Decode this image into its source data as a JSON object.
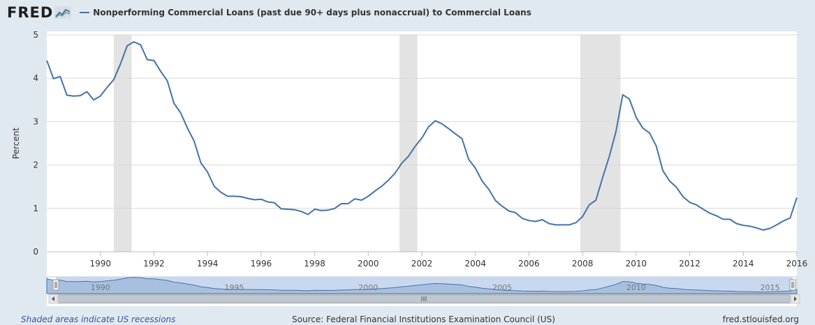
{
  "header": {
    "logo_text": "FRED",
    "legend_label": "Nonperforming Commercial Loans (past due 90+ days plus nonaccrual) to Commercial Loans"
  },
  "footer": {
    "recession_note": "Shaded areas indicate US recessions",
    "source": "Source: Federal Financial Institutions Examination Council (US)",
    "site": "fred.stlouisfed.org"
  },
  "colors": {
    "line": "#4572a7",
    "recession": "#e3e3e3",
    "navigator_fill": "#a8c0e0",
    "navigator_selection": "#c9d8ee"
  },
  "chart_data": {
    "type": "line",
    "ylabel": "Percent",
    "ylim": [
      0,
      5
    ],
    "y_ticks": [
      "0",
      "1",
      "2",
      "3",
      "4",
      "5"
    ],
    "x_ticks": [
      "1990",
      "1992",
      "1994",
      "1996",
      "1998",
      "2000",
      "2002",
      "2004",
      "2006",
      "2008",
      "2010",
      "2012",
      "2014",
      "2016"
    ],
    "navigator_ticks": [
      "1990",
      "1995",
      "2000",
      "2005",
      "2010",
      "2015"
    ],
    "grid": true,
    "recessions": [
      [
        "1990-07",
        "1991-03"
      ],
      [
        "2001-03",
        "2001-11"
      ],
      [
        "2007-12",
        "2009-06"
      ]
    ],
    "series": [
      {
        "x": [
          "1988-01",
          "1988-04",
          "1988-07",
          "1988-10",
          "1989-01",
          "1989-04",
          "1989-07",
          "1989-10",
          "1990-01",
          "1990-04",
          "1990-07",
          "1990-10",
          "1991-01",
          "1991-04",
          "1991-07",
          "1991-10",
          "1992-01",
          "1992-04",
          "1992-07",
          "1992-10",
          "1993-01",
          "1993-04",
          "1993-07",
          "1993-10",
          "1994-01",
          "1994-04",
          "1994-07",
          "1994-10",
          "1995-01",
          "1995-04",
          "1995-07",
          "1995-10",
          "1996-01",
          "1996-04",
          "1996-07",
          "1996-10",
          "1997-01",
          "1997-04",
          "1997-07",
          "1997-10",
          "1998-01",
          "1998-04",
          "1998-07",
          "1998-10",
          "1999-01",
          "1999-04",
          "1999-07",
          "1999-10",
          "2000-01",
          "2000-04",
          "2000-07",
          "2000-10",
          "2001-01",
          "2001-04",
          "2001-07",
          "2001-10",
          "2002-01",
          "2002-04",
          "2002-07",
          "2002-10",
          "2003-01",
          "2003-04",
          "2003-07",
          "2003-10",
          "2004-01",
          "2004-04",
          "2004-07",
          "2004-10",
          "2005-01",
          "2005-04",
          "2005-07",
          "2005-10",
          "2006-01",
          "2006-04",
          "2006-07",
          "2006-10",
          "2007-01",
          "2007-04",
          "2007-07",
          "2007-10",
          "2008-01",
          "2008-04",
          "2008-07",
          "2008-10",
          "2009-01",
          "2009-04",
          "2009-07",
          "2009-10",
          "2010-01",
          "2010-04",
          "2010-07",
          "2010-10",
          "2011-01",
          "2011-04",
          "2011-07",
          "2011-10",
          "2012-01",
          "2012-04",
          "2012-07",
          "2012-10",
          "2013-01",
          "2013-04",
          "2013-07",
          "2013-10",
          "2014-01",
          "2014-04",
          "2014-07",
          "2014-10",
          "2015-01",
          "2015-04",
          "2015-07",
          "2015-10",
          "2016-01"
        ],
        "values": [
          4.41,
          3.99,
          4.04,
          3.61,
          3.59,
          3.6,
          3.69,
          3.5,
          3.59,
          3.79,
          3.97,
          4.33,
          4.75,
          4.84,
          4.77,
          4.43,
          4.41,
          4.16,
          3.94,
          3.42,
          3.2,
          2.85,
          2.55,
          2.05,
          1.84,
          1.51,
          1.37,
          1.28,
          1.28,
          1.27,
          1.23,
          1.2,
          1.21,
          1.15,
          1.13,
          0.99,
          0.98,
          0.97,
          0.93,
          0.86,
          0.98,
          0.95,
          0.96,
          1.0,
          1.11,
          1.11,
          1.22,
          1.19,
          1.28,
          1.4,
          1.51,
          1.65,
          1.81,
          2.04,
          2.2,
          2.43,
          2.62,
          2.88,
          3.02,
          2.95,
          2.84,
          2.72,
          2.61,
          2.13,
          1.93,
          1.63,
          1.44,
          1.18,
          1.05,
          0.94,
          0.9,
          0.77,
          0.72,
          0.7,
          0.74,
          0.65,
          0.62,
          0.62,
          0.62,
          0.67,
          0.81,
          1.08,
          1.19,
          1.71,
          2.2,
          2.78,
          3.62,
          3.52,
          3.1,
          2.85,
          2.74,
          2.44,
          1.87,
          1.63,
          1.49,
          1.27,
          1.14,
          1.08,
          0.98,
          0.89,
          0.83,
          0.75,
          0.75,
          0.65,
          0.61,
          0.59,
          0.55,
          0.5,
          0.54,
          0.62,
          0.71,
          0.78,
          1.25
        ]
      }
    ]
  }
}
